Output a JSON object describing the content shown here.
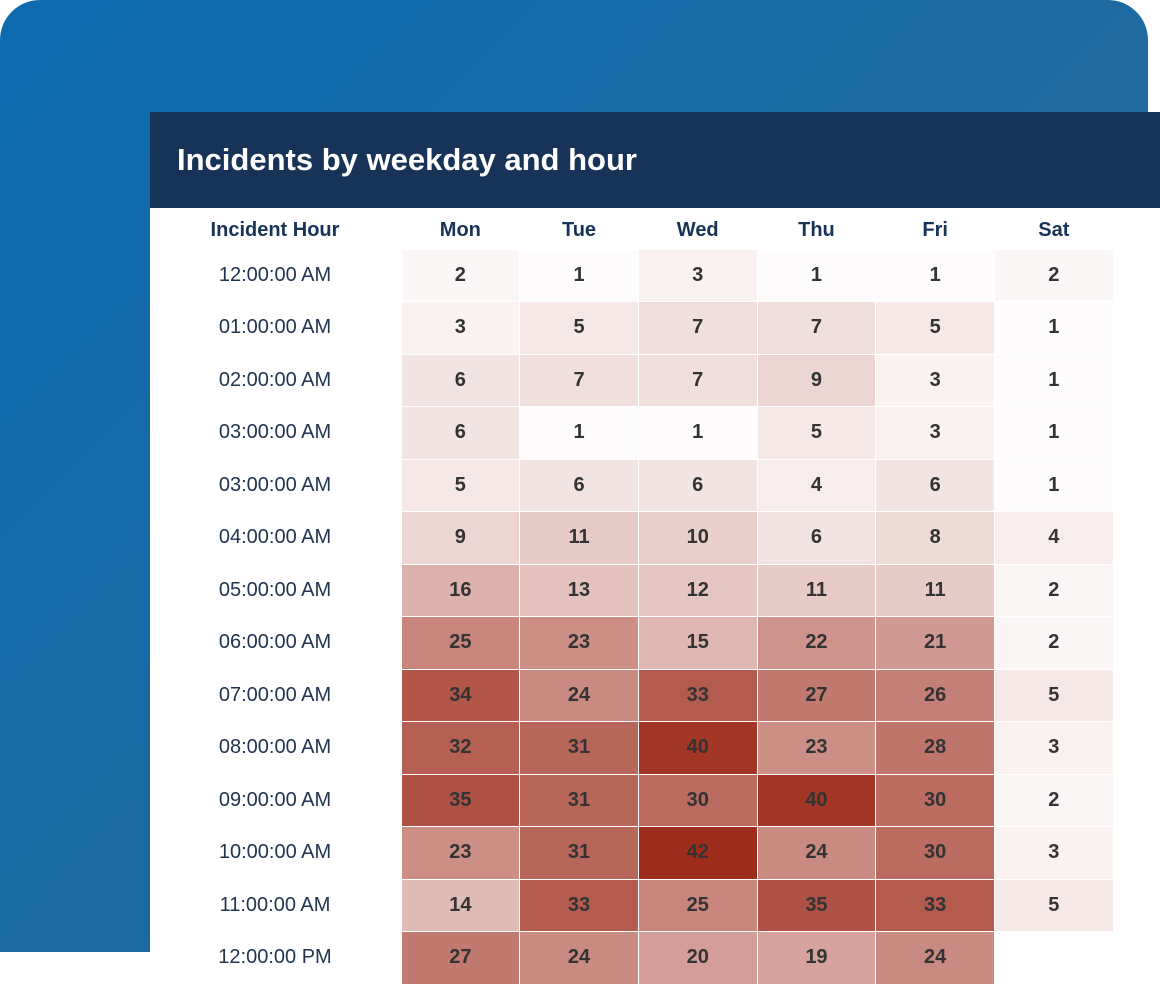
{
  "header": {
    "title": "Incidents by weekday and hour"
  },
  "table": {
    "columns": [
      "Incident Hour",
      "Mon",
      "Tue",
      "Wed",
      "Thu",
      "Fri",
      "Sat"
    ],
    "rows": [
      [
        "12:00:00 AM",
        2,
        1,
        3,
        1,
        1,
        2
      ],
      [
        "01:00:00 AM",
        3,
        5,
        7,
        7,
        5,
        1
      ],
      [
        "02:00:00 AM",
        6,
        7,
        7,
        9,
        3,
        1
      ],
      [
        "03:00:00 AM",
        6,
        1,
        1,
        5,
        3,
        1
      ],
      [
        "03:00:00 AM",
        5,
        6,
        6,
        4,
        6,
        1
      ],
      [
        "04:00:00 AM",
        9,
        11,
        10,
        6,
        8,
        4
      ],
      [
        "05:00:00 AM",
        16,
        13,
        12,
        11,
        11,
        2
      ],
      [
        "06:00:00 AM",
        25,
        23,
        15,
        22,
        21,
        2
      ],
      [
        "07:00:00 AM",
        34,
        24,
        33,
        27,
        26,
        5
      ],
      [
        "08:00:00 AM",
        32,
        31,
        40,
        23,
        28,
        3
      ],
      [
        "09:00:00 AM",
        35,
        31,
        30,
        40,
        30,
        2
      ],
      [
        "10:00:00 AM",
        23,
        31,
        42,
        24,
        30,
        3
      ],
      [
        "11:00:00 AM",
        14,
        33,
        25,
        35,
        33,
        5
      ],
      [
        "12:00:00 PM",
        27,
        24,
        20,
        19,
        24,
        null
      ]
    ]
  }
}
